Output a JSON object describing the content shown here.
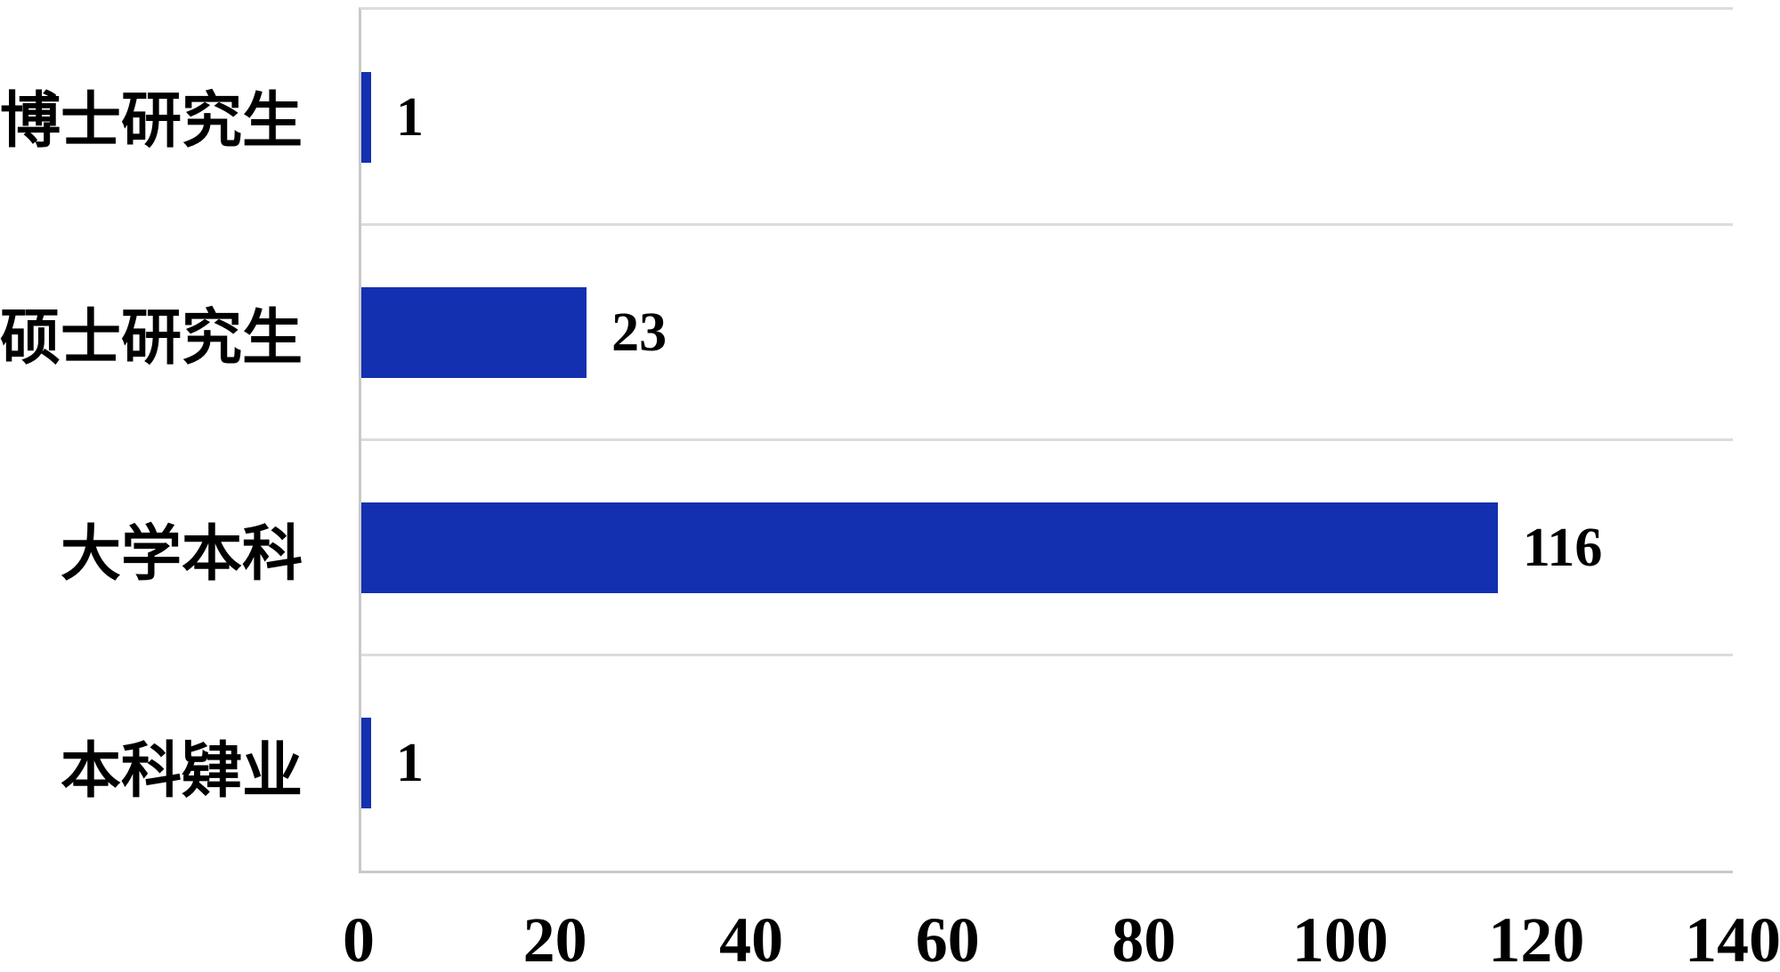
{
  "chart_data": {
    "type": "bar",
    "orientation": "horizontal",
    "title": "",
    "xlabel": "",
    "ylabel": "",
    "categories": [
      "博士研究生",
      "硕士研究生",
      "大学本科",
      "本科肄业"
    ],
    "values": [
      1,
      23,
      116,
      1
    ],
    "data_labels": [
      "1",
      "23",
      "116",
      "1"
    ],
    "x_ticks": [
      "0",
      "20",
      "40",
      "60",
      "80",
      "100",
      "120",
      "140"
    ],
    "x_tick_values": [
      0,
      20,
      40,
      60,
      80,
      100,
      120,
      140
    ],
    "xlim": [
      0,
      140
    ],
    "legend": "none",
    "grid": "horizontal-row-separators",
    "bar_color": "#1230B0",
    "gridline_color": "#DCDCDC",
    "axis_line_color": "#C9C9C9",
    "text_color": "#000000",
    "background_color": "#FFFFFF"
  }
}
